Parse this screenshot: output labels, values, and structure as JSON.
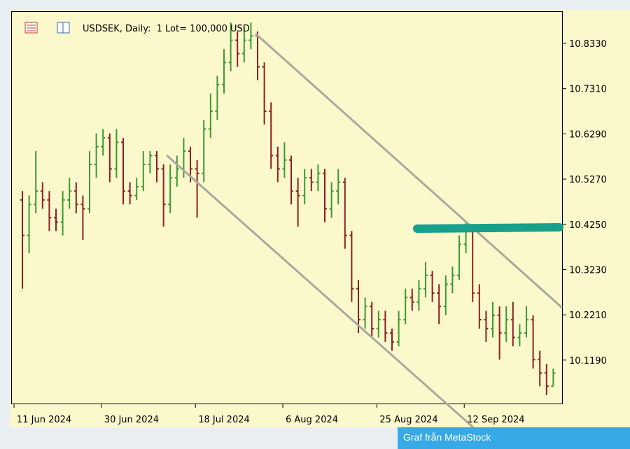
{
  "chart_data": {
    "type": "ohlc",
    "title": "USDSEK, Daily:  1 Lot= 100,000 USD",
    "categories": [
      "11 Jun 2024",
      null,
      null,
      null,
      null,
      null,
      null,
      null,
      null,
      null,
      null,
      null,
      null,
      "30 Jun 2024",
      null,
      null,
      null,
      null,
      null,
      null,
      null,
      null,
      null,
      null,
      null,
      null,
      null,
      "18 Jul 2024",
      null,
      null,
      null,
      null,
      null,
      null,
      null,
      null,
      null,
      null,
      null,
      null,
      "6 Aug 2024",
      null,
      null,
      null,
      null,
      null,
      null,
      null,
      null,
      null,
      null,
      null,
      null,
      null,
      "25 Aug 2024",
      null,
      null,
      null,
      null,
      null,
      null,
      null,
      null,
      null,
      null,
      null,
      null,
      "12 Sep 2024",
      null,
      null,
      null,
      null,
      null,
      null,
      null,
      null,
      null,
      null,
      null,
      null
    ],
    "open": [
      10.48,
      10.4,
      10.47,
      10.5,
      10.48,
      10.44,
      10.43,
      10.48,
      10.5,
      10.47,
      10.46,
      10.56,
      10.6,
      10.62,
      10.55,
      10.61,
      10.5,
      10.49,
      10.51,
      10.56,
      10.58,
      10.55,
      10.47,
      10.53,
      10.55,
      10.59,
      10.55,
      10.54,
      10.64,
      10.68,
      10.74,
      10.79,
      10.84,
      10.81,
      10.84,
      10.85,
      10.78,
      10.68,
      10.58,
      10.55,
      10.57,
      10.5,
      10.49,
      10.53,
      10.52,
      10.54,
      10.46,
      10.5,
      10.52,
      10.4,
      10.28,
      10.21,
      10.24,
      10.19,
      10.21,
      10.18,
      10.16,
      10.21,
      10.26,
      10.25,
      10.28,
      10.31,
      10.27,
      10.24,
      10.29,
      10.31,
      10.38,
      10.41,
      10.27,
      10.21,
      10.19,
      10.22,
      10.18,
      10.21,
      10.17,
      10.18,
      10.21,
      10.12,
      10.09,
      10.06
    ],
    "high": [
      10.5,
      10.49,
      10.59,
      10.52,
      10.5,
      10.46,
      10.5,
      10.53,
      10.52,
      10.49,
      10.59,
      10.63,
      10.64,
      10.63,
      10.64,
      10.62,
      10.52,
      10.53,
      10.59,
      10.59,
      10.59,
      10.56,
      10.56,
      10.58,
      10.62,
      10.6,
      10.57,
      10.66,
      10.72,
      10.76,
      10.82,
      10.88,
      10.86,
      10.87,
      10.88,
      10.86,
      10.79,
      10.7,
      10.6,
      10.61,
      10.58,
      10.53,
      10.55,
      10.55,
      10.56,
      10.55,
      10.52,
      10.55,
      10.53,
      10.41,
      10.3,
      10.26,
      10.25,
      10.23,
      10.23,
      10.19,
      10.23,
      10.28,
      10.28,
      10.3,
      10.34,
      10.32,
      10.29,
      10.31,
      10.33,
      10.4,
      10.43,
      10.42,
      10.29,
      10.23,
      10.25,
      10.24,
      10.24,
      10.25,
      10.2,
      10.24,
      10.22,
      10.14,
      10.11,
      10.1
    ],
    "low": [
      10.28,
      10.36,
      10.45,
      10.46,
      10.41,
      10.41,
      10.4,
      10.46,
      10.45,
      10.39,
      10.45,
      10.53,
      10.58,
      10.52,
      10.53,
      10.47,
      10.47,
      10.48,
      10.5,
      10.54,
      10.52,
      10.42,
      10.45,
      10.51,
      10.53,
      10.52,
      10.44,
      10.52,
      10.62,
      10.66,
      10.72,
      10.77,
      10.78,
      10.79,
      10.82,
      10.75,
      10.65,
      10.55,
      10.52,
      10.53,
      10.47,
      10.42,
      10.47,
      10.5,
      10.5,
      10.43,
      10.44,
      10.47,
      10.37,
      10.25,
      10.18,
      10.19,
      10.17,
      10.17,
      10.16,
      10.14,
      10.15,
      10.2,
      10.23,
      10.23,
      10.26,
      10.25,
      10.2,
      10.22,
      10.27,
      10.3,
      10.36,
      10.25,
      10.19,
      10.16,
      10.17,
      10.12,
      10.16,
      10.15,
      10.15,
      10.17,
      10.1,
      10.06,
      10.04,
      10.06
    ],
    "close": [
      10.4,
      10.47,
      10.5,
      10.48,
      10.44,
      10.43,
      10.48,
      10.5,
      10.47,
      10.46,
      10.56,
      10.6,
      10.62,
      10.55,
      10.61,
      10.5,
      10.49,
      10.51,
      10.56,
      10.58,
      10.55,
      10.47,
      10.53,
      10.55,
      10.59,
      10.55,
      10.54,
      10.64,
      10.68,
      10.74,
      10.79,
      10.84,
      10.81,
      10.84,
      10.85,
      10.78,
      10.68,
      10.58,
      10.55,
      10.57,
      10.5,
      10.49,
      10.53,
      10.52,
      10.54,
      10.46,
      10.5,
      10.52,
      10.4,
      10.28,
      10.21,
      10.24,
      10.19,
      10.21,
      10.18,
      10.16,
      10.21,
      10.26,
      10.25,
      10.28,
      10.31,
      10.27,
      10.24,
      10.29,
      10.31,
      10.38,
      10.41,
      10.27,
      10.21,
      10.19,
      10.22,
      10.18,
      10.21,
      10.17,
      10.18,
      10.21,
      10.12,
      10.09,
      10.06,
      10.09
    ],
    "up_color": "#3c9a32",
    "down_color": "#8e2020",
    "ylim": [
      10.021,
      10.904
    ],
    "yticks": [
      {
        "value": 10.833,
        "label": "10.8330"
      },
      {
        "value": 10.731,
        "label": "10.7310"
      },
      {
        "value": 10.629,
        "label": "10.6290"
      },
      {
        "value": 10.527,
        "label": "10.5270"
      },
      {
        "value": 10.425,
        "label": "10.4250"
      },
      {
        "value": 10.323,
        "label": "10.3230"
      },
      {
        "value": 10.221,
        "label": "10.2210"
      },
      {
        "value": 10.119,
        "label": "10.1190"
      }
    ]
  },
  "caption": "Graf från MetaStock"
}
